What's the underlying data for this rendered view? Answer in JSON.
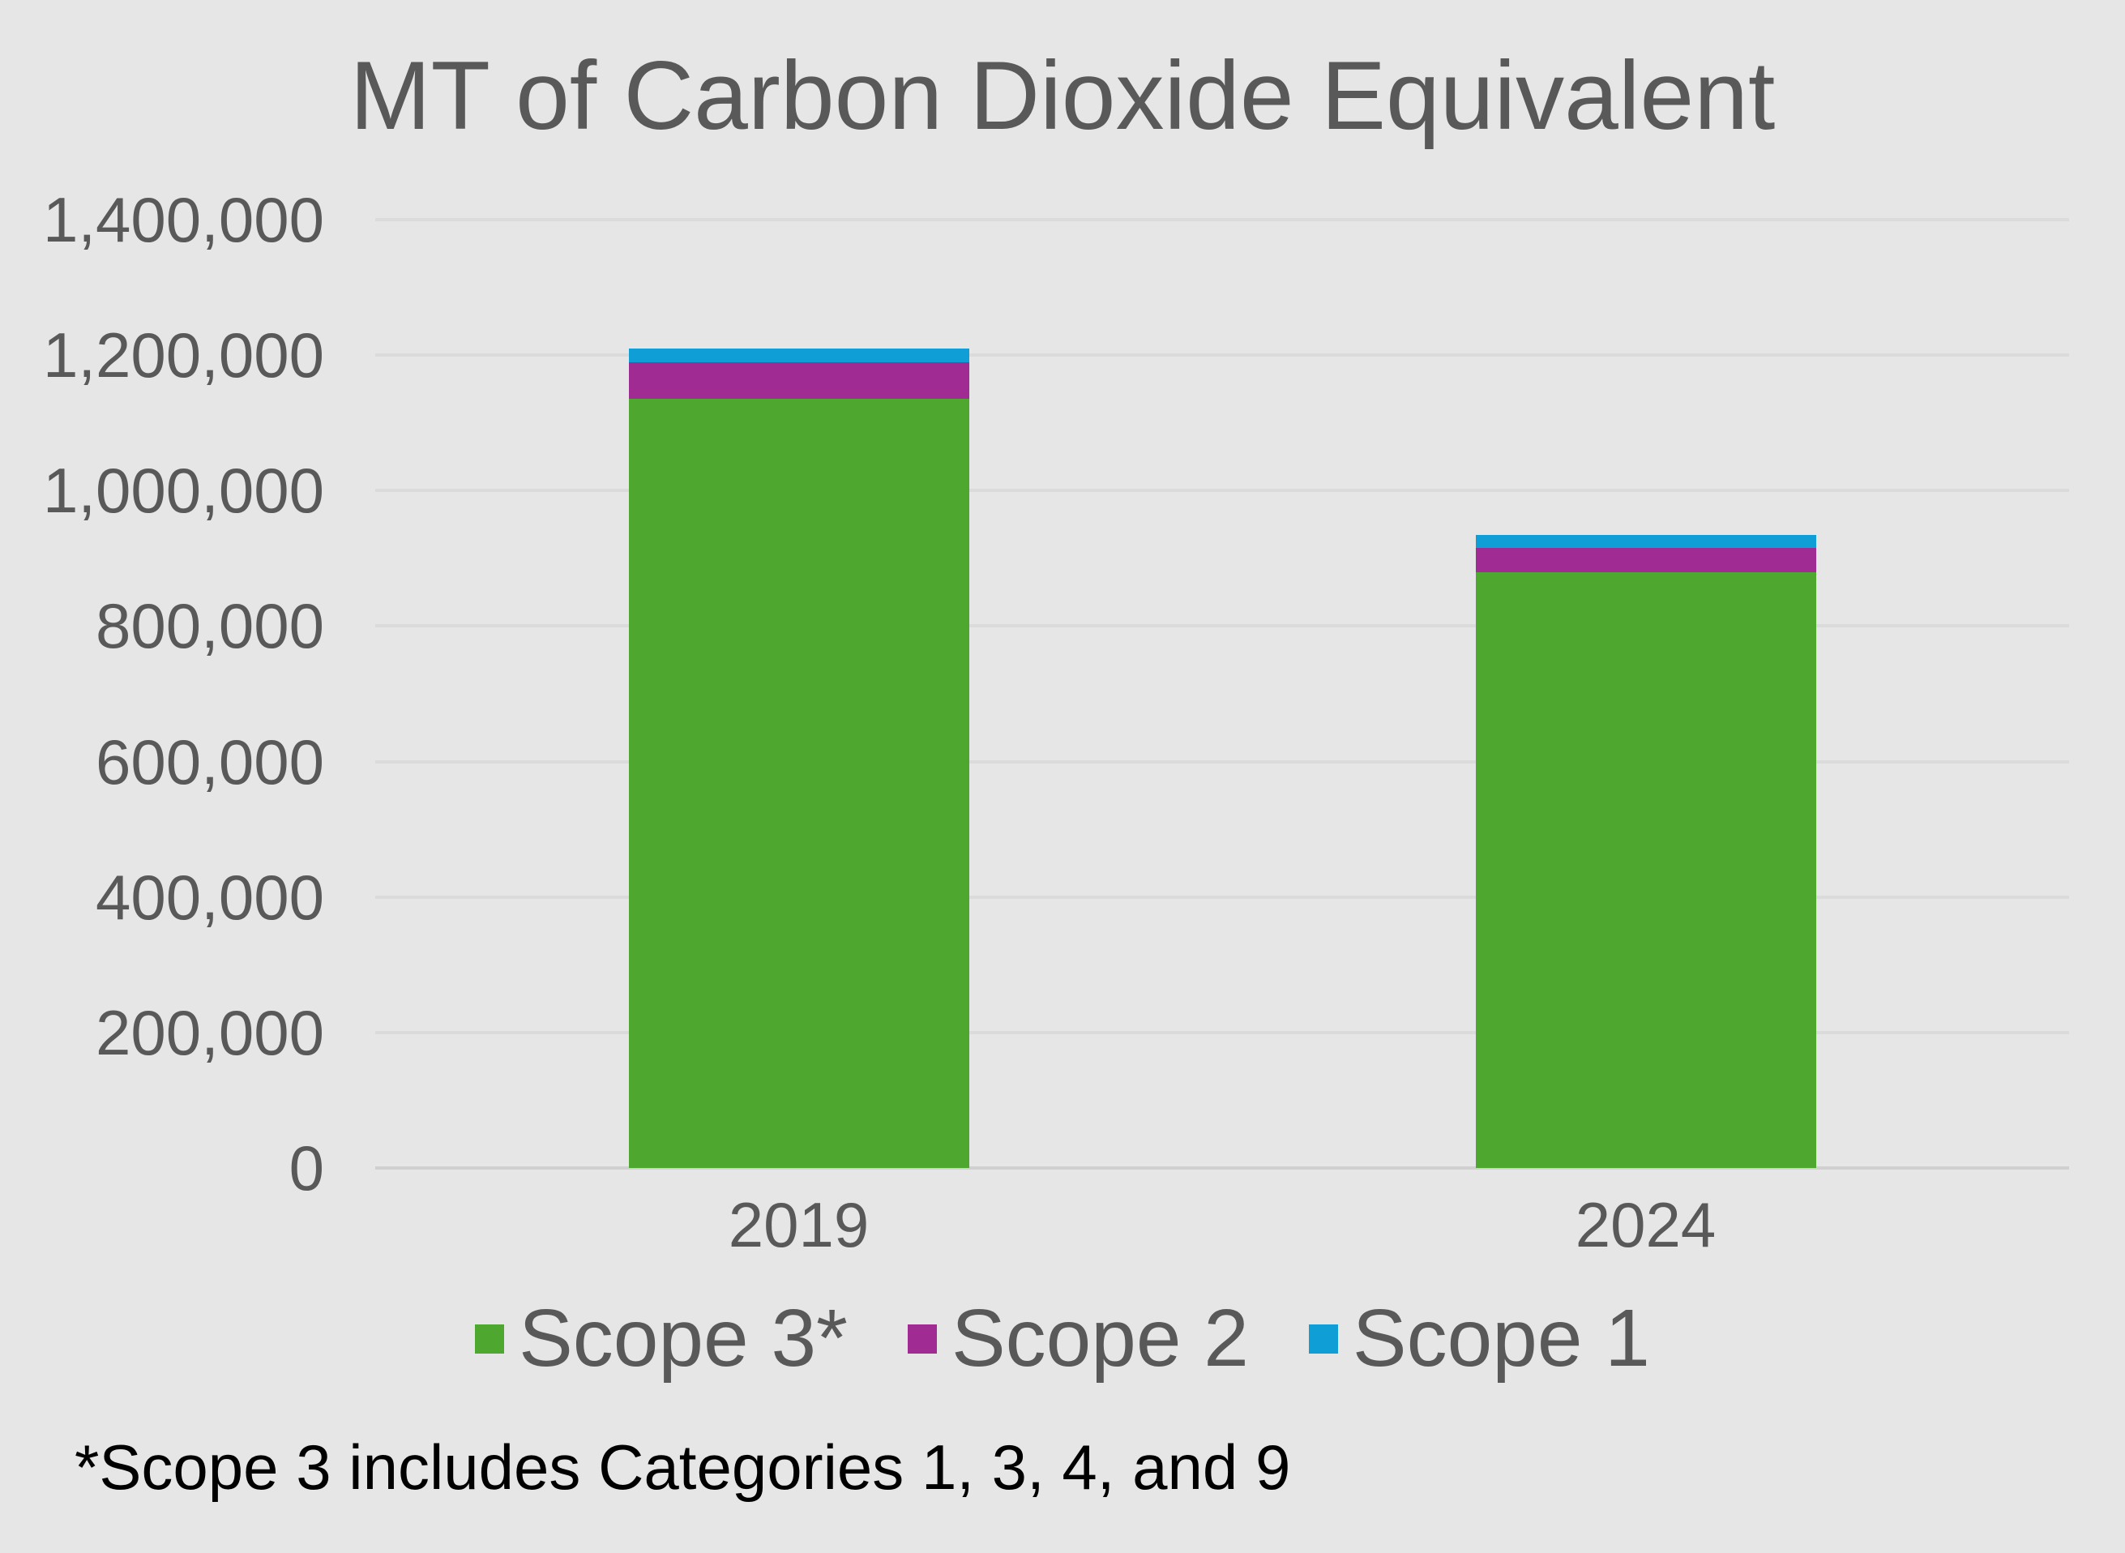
{
  "title": "MT of Carbon Dioxide Equivalent",
  "footnote": "*Scope 3 includes Categories 1, 3, 4, and 9",
  "colors": {
    "background": "#E6E6E6",
    "grid_line": "#DBDBDB",
    "zero_line": "#D0D0D0",
    "text_gray": "#595959",
    "footnote_black": "#000000",
    "scope3_green": "#4EA72E",
    "scope2_purple": "#A02B93",
    "scope1_blue": "#0F9ED5"
  },
  "chart_data": {
    "type": "bar",
    "stacked": true,
    "title": "MT of Carbon Dioxide Equivalent",
    "xlabel": "",
    "ylabel": "",
    "categories": [
      "2019",
      "2024"
    ],
    "series": [
      {
        "name": "Scope 3*",
        "color": "#4EA72E",
        "values": [
          1135000,
          880000
        ]
      },
      {
        "name": "Scope 2",
        "color": "#A02B93",
        "values": [
          55000,
          35000
        ]
      },
      {
        "name": "Scope 1",
        "color": "#0F9ED5",
        "values": [
          20000,
          20000
        ]
      }
    ],
    "totals": [
      1210000,
      935000
    ],
    "ylim": [
      0,
      1400000
    ],
    "ytick_interval": 200000,
    "yticks": [
      {
        "label": "1,400,000",
        "value": 1400000
      },
      {
        "label": "1,200,000",
        "value": 1200000
      },
      {
        "label": "1,000,000",
        "value": 1000000
      },
      {
        "label": "800,000",
        "value": 800000
      },
      {
        "label": "600,000",
        "value": 600000
      },
      {
        "label": "400,000",
        "value": 400000
      },
      {
        "label": "200,000",
        "value": 200000
      },
      {
        "label": "0",
        "value": 0
      }
    ],
    "grid": "horizontal",
    "legend_position": "bottom",
    "legend": [
      "Scope 3*",
      "Scope 2",
      "Scope 1"
    ]
  }
}
